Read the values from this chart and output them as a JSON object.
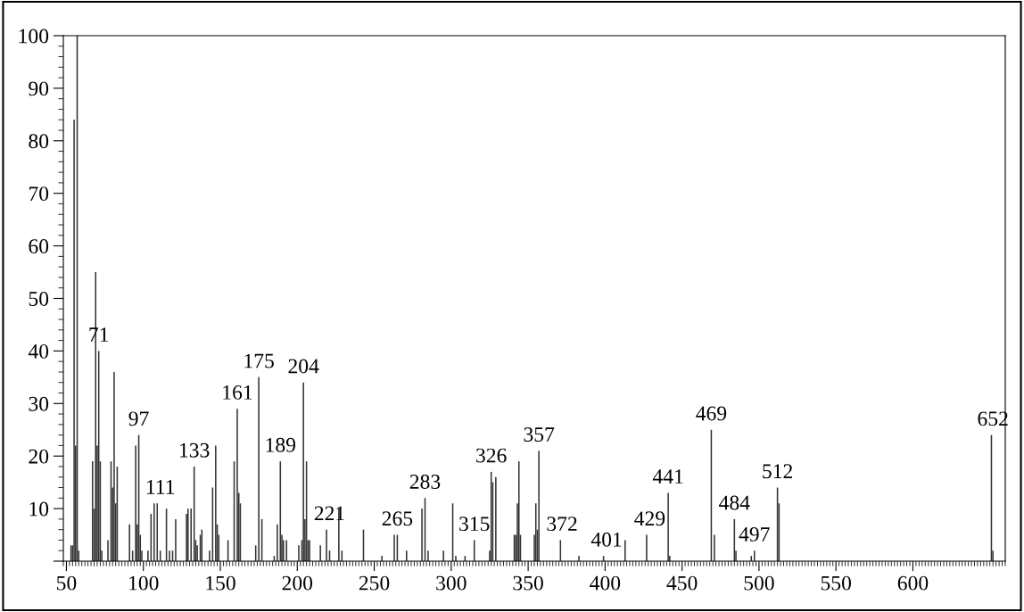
{
  "chart_data": {
    "type": "bar",
    "color": "#333333",
    "x": [
      53,
      54,
      55,
      56,
      57,
      58,
      67,
      68,
      69,
      70,
      71,
      72,
      73,
      77,
      79,
      80,
      81,
      82,
      83,
      91,
      93,
      95,
      96,
      97,
      98,
      99,
      103,
      105,
      107,
      109,
      111,
      115,
      117,
      119,
      121,
      128,
      129,
      131,
      133,
      134,
      135,
      137,
      138,
      143,
      145,
      147,
      148,
      149,
      155,
      159,
      161,
      162,
      163,
      173,
      175,
      177,
      185,
      187,
      189,
      190,
      191,
      193,
      201,
      203,
      204,
      205,
      206,
      207,
      208,
      215,
      219,
      221,
      227,
      229,
      243,
      255,
      263,
      265,
      271,
      281,
      283,
      285,
      295,
      301,
      303,
      309,
      315,
      325,
      326,
      327,
      329,
      341,
      342,
      343,
      344,
      345,
      354,
      355,
      356,
      357,
      371,
      383,
      399,
      413,
      427,
      441,
      442,
      469,
      471,
      484,
      485,
      495,
      497,
      512,
      513,
      651,
      652
    ],
    "values": [
      3,
      3,
      84,
      22,
      100,
      2,
      19,
      10,
      55,
      22,
      40,
      19,
      2,
      4,
      19,
      14,
      36,
      11,
      18,
      7,
      2,
      22,
      7,
      24,
      5,
      2,
      2,
      9,
      11,
      11,
      2,
      10,
      2,
      2,
      8,
      9,
      10,
      10,
      18,
      4,
      3,
      5,
      6,
      2,
      14,
      22,
      7,
      5,
      4,
      19,
      29,
      13,
      11,
      3,
      35,
      8,
      1,
      7,
      19,
      5,
      4,
      4,
      3,
      4,
      34,
      8,
      19,
      4,
      4,
      3,
      6,
      2,
      10,
      2,
      6,
      1,
      5,
      5,
      2,
      10,
      12,
      2,
      2,
      11,
      1,
      1,
      4,
      2,
      17,
      15,
      16,
      5,
      5,
      11,
      19,
      5,
      5,
      11,
      6,
      21,
      4,
      1,
      1,
      4,
      5,
      13,
      1,
      25,
      5,
      8,
      2,
      1,
      2,
      14,
      11,
      24,
      2
    ],
    "xlim": [
      48,
      660
    ],
    "ylim": [
      0,
      100
    ],
    "xticks": [
      50,
      100,
      150,
      200,
      250,
      300,
      350,
      400,
      450,
      500,
      550,
      600
    ],
    "yticks": [
      {
        "value": 0,
        "label": null
      },
      10,
      20,
      30,
      40,
      50,
      60,
      70,
      80,
      90,
      100
    ],
    "grid": false,
    "annotations": [
      {
        "text": "71",
        "x": 71,
        "y": 40
      },
      {
        "text": "97",
        "x": 97,
        "y": 24
      },
      {
        "text": "111",
        "x": 111,
        "y": 11
      },
      {
        "text": "133",
        "x": 133,
        "y": 18
      },
      {
        "text": "161",
        "x": 161,
        "y": 29
      },
      {
        "text": "175",
        "x": 175,
        "y": 35
      },
      {
        "text": "189",
        "x": 189,
        "y": 19
      },
      {
        "text": "204",
        "x": 204,
        "y": 34
      },
      {
        "text": "221",
        "x": 221,
        "y": 6
      },
      {
        "text": "265",
        "x": 265,
        "y": 5
      },
      {
        "text": "283",
        "x": 283,
        "y": 12
      },
      {
        "text": "315",
        "x": 315,
        "y": 4
      },
      {
        "text": "326",
        "x": 326,
        "y": 17
      },
      {
        "text": "357",
        "x": 357,
        "y": 21
      },
      {
        "text": "372",
        "x": 372,
        "y": 4
      },
      {
        "text": "401",
        "x": 401,
        "y": 1
      },
      {
        "text": "429",
        "x": 429,
        "y": 5
      },
      {
        "text": "441",
        "x": 441,
        "y": 13
      },
      {
        "text": "469",
        "x": 469,
        "y": 25
      },
      {
        "text": "484",
        "x": 484,
        "y": 8
      },
      {
        "text": "497",
        "x": 497,
        "y": 2
      },
      {
        "text": "512",
        "x": 512,
        "y": 14
      },
      {
        "text": "652",
        "x": 652,
        "y": 24
      }
    ]
  }
}
